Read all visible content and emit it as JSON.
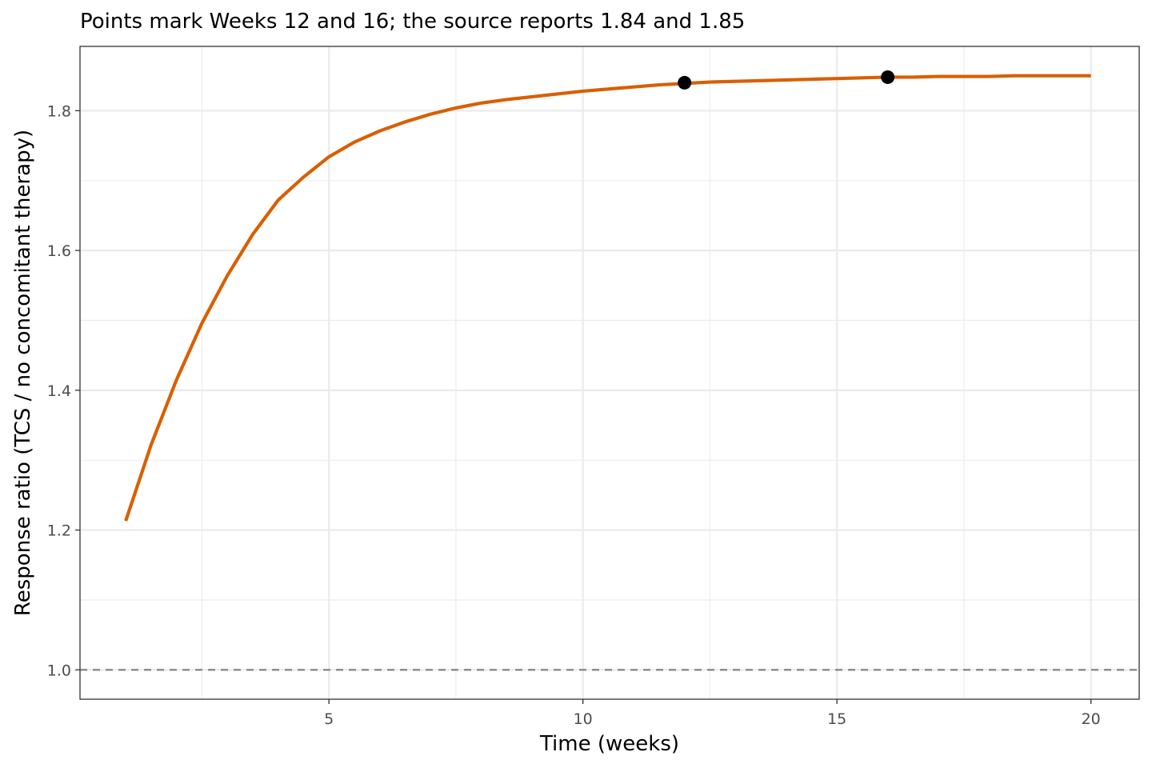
{
  "chart_data": {
    "type": "line",
    "title": "Points mark Weeks 12 and 16; the source reports 1.84 and 1.85",
    "xlabel": "Time (weeks)",
    "ylabel": "Response ratio (TCS / no concomitant therapy)",
    "xlim": [
      0.1,
      20.95
    ],
    "ylim": [
      0.958,
      1.892
    ],
    "x_ticks": [
      5,
      10,
      15,
      20
    ],
    "y_ticks": [
      1.0,
      1.2,
      1.4,
      1.6,
      1.8
    ],
    "x_tick_labels": [
      "5",
      "10",
      "15",
      "20"
    ],
    "y_tick_labels": [
      "1.0",
      "1.2",
      "1.4",
      "1.6",
      "1.8"
    ],
    "grid": true,
    "reference_line": {
      "y": 1.0,
      "style": "dashed",
      "color": "#7f7f7f"
    },
    "series": [
      {
        "type": "line",
        "color": "#d95f02",
        "x": [
          1,
          1.5,
          2,
          2.5,
          3,
          3.5,
          4,
          4.5,
          5,
          5.5,
          6,
          6.5,
          7,
          7.5,
          8,
          8.5,
          9,
          9.5,
          10,
          10.5,
          11,
          11.5,
          12,
          12.5,
          13,
          13.5,
          14,
          14.5,
          15,
          15.5,
          16,
          16.5,
          17,
          17.5,
          18,
          18.5,
          19,
          19.5,
          20
        ],
        "y": [
          1.213,
          1.322,
          1.415,
          1.496,
          1.564,
          1.623,
          1.672,
          1.705,
          1.734,
          1.755,
          1.771,
          1.784,
          1.795,
          1.804,
          1.811,
          1.816,
          1.82,
          1.824,
          1.828,
          1.831,
          1.834,
          1.837,
          1.839,
          1.841,
          1.842,
          1.843,
          1.844,
          1.845,
          1.846,
          1.847,
          1.848,
          1.848,
          1.849,
          1.849,
          1.849,
          1.85,
          1.85,
          1.85,
          1.85
        ]
      },
      {
        "type": "scatter",
        "color": "#000000",
        "x": [
          12,
          16
        ],
        "y": [
          1.84,
          1.848
        ]
      }
    ]
  }
}
